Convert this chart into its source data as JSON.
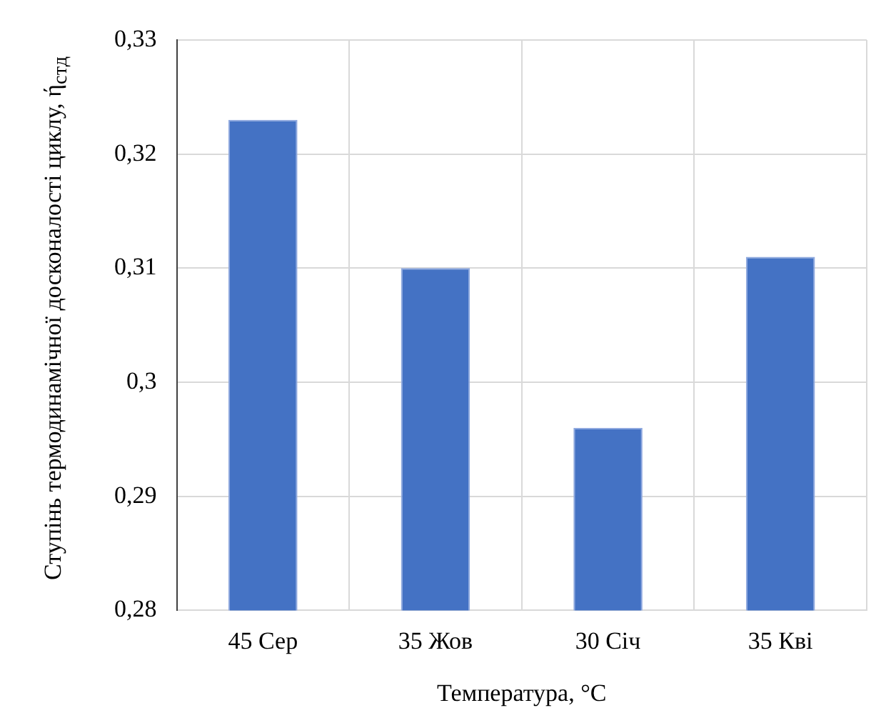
{
  "chart_data": {
    "type": "bar",
    "xlabel": "Температура, °C",
    "ylabel": "Ступінь термодинамічної досконалості циклу, ή$_{стд}$",
    "categories": [
      "45 Сер",
      "35 Жов",
      "30 Січ",
      "35 Кві"
    ],
    "values": [
      0.323,
      0.31,
      0.296,
      0.311
    ],
    "color": "#4472c4",
    "ylim": [
      0.28,
      0.33
    ],
    "yticks": [
      {
        "value": 0.28,
        "label": "0,28"
      },
      {
        "value": 0.29,
        "label": "0,29"
      },
      {
        "value": 0.3,
        "label": "0,3"
      },
      {
        "value": 0.31,
        "label": "0,31"
      },
      {
        "value": 0.32,
        "label": "0,32"
      },
      {
        "value": 0.33,
        "label": "0,33"
      }
    ],
    "grid": true
  }
}
